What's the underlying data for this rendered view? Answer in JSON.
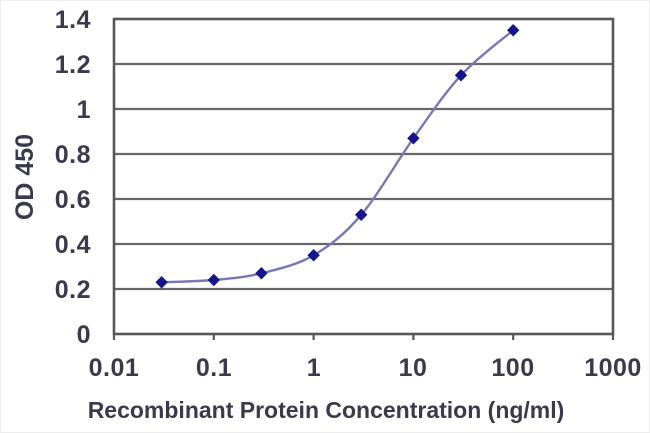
{
  "chart_data": {
    "type": "line",
    "title": "",
    "xlabel": "Recombinant Protein Concentration (ng/ml)",
    "ylabel": "OD 450",
    "x_scale": "log",
    "xlim": [
      0.01,
      1000
    ],
    "ylim": [
      0,
      1.4
    ],
    "x": [
      0.03,
      0.1,
      0.3,
      1,
      3,
      10,
      30,
      100
    ],
    "values": [
      0.23,
      0.24,
      0.27,
      0.35,
      0.53,
      0.87,
      1.15,
      1.35
    ],
    "x_ticks": [
      0.01,
      0.1,
      1,
      10,
      100,
      1000
    ],
    "x_tick_labels": [
      "0.01",
      "0.1",
      "1",
      "10",
      "100",
      "1000"
    ],
    "y_ticks": [
      0,
      0.2,
      0.4,
      0.6,
      0.8,
      1,
      1.2,
      1.4
    ],
    "y_tick_labels": [
      "0",
      "0.2",
      "0.4",
      "0.6",
      "0.8",
      "1",
      "1.2",
      "1.4"
    ],
    "grid": "horizontal",
    "legend": "none",
    "marker_shape": "diamond",
    "colors": {
      "line": "#7a78b4",
      "marker": "#16168c",
      "gridline": "#686868",
      "frame": "#575757",
      "text": "#3a3a4c",
      "background": "#ffffff"
    }
  }
}
